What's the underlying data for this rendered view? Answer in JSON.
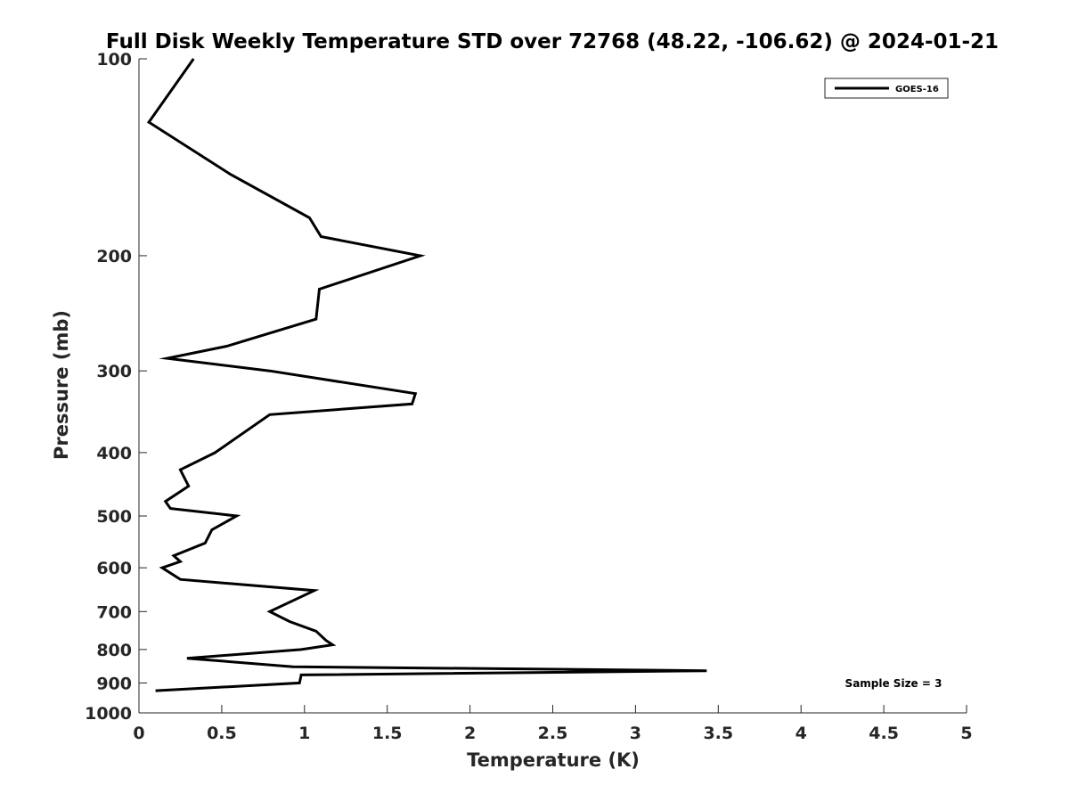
{
  "chart_data": {
    "type": "line",
    "title": "Full Disk Weekly Temperature STD over 72768 (48.22, -106.62) @ 2024-01-21",
    "xlabel": "Temperature (K)",
    "ylabel": "Pressure (mb)",
    "xlim": [
      0,
      5
    ],
    "ylim": [
      100,
      1000
    ],
    "y_scale": "log",
    "y_reversed": true,
    "x_ticks": [
      "0",
      "0.5",
      "1",
      "1.5",
      "2",
      "2.5",
      "3",
      "3.5",
      "4",
      "4.5",
      "5"
    ],
    "y_ticks": [
      "100",
      "200",
      "300",
      "400",
      "500",
      "600",
      "700",
      "800",
      "900",
      "1000"
    ],
    "grid": false,
    "legend_position": "top-right",
    "annotation": "Sample Size = 3",
    "series": [
      {
        "name": "GOES-16",
        "color": "#000000",
        "points": [
          [
            0.33,
            100
          ],
          [
            0.06,
            125
          ],
          [
            0.55,
            150
          ],
          [
            1.03,
            175
          ],
          [
            1.1,
            187
          ],
          [
            1.7,
            200
          ],
          [
            1.09,
            225
          ],
          [
            1.07,
            250
          ],
          [
            0.53,
            275
          ],
          [
            0.17,
            287
          ],
          [
            0.79,
            300
          ],
          [
            1.67,
            325
          ],
          [
            1.65,
            337
          ],
          [
            0.79,
            350
          ],
          [
            0.46,
            400
          ],
          [
            0.25,
            425
          ],
          [
            0.3,
            450
          ],
          [
            0.16,
            475
          ],
          [
            0.19,
            487
          ],
          [
            0.59,
            500
          ],
          [
            0.44,
            525
          ],
          [
            0.4,
            550
          ],
          [
            0.21,
            575
          ],
          [
            0.25,
            587
          ],
          [
            0.14,
            600
          ],
          [
            0.25,
            625
          ],
          [
            1.06,
            650
          ],
          [
            0.79,
            700
          ],
          [
            0.91,
            725
          ],
          [
            1.07,
            750
          ],
          [
            1.13,
            775
          ],
          [
            1.17,
            787
          ],
          [
            0.98,
            800
          ],
          [
            0.29,
            825
          ],
          [
            0.93,
            850
          ],
          [
            3.43,
            862
          ],
          [
            0.98,
            875
          ],
          [
            0.97,
            900
          ],
          [
            0.1,
            925
          ]
        ]
      }
    ]
  }
}
